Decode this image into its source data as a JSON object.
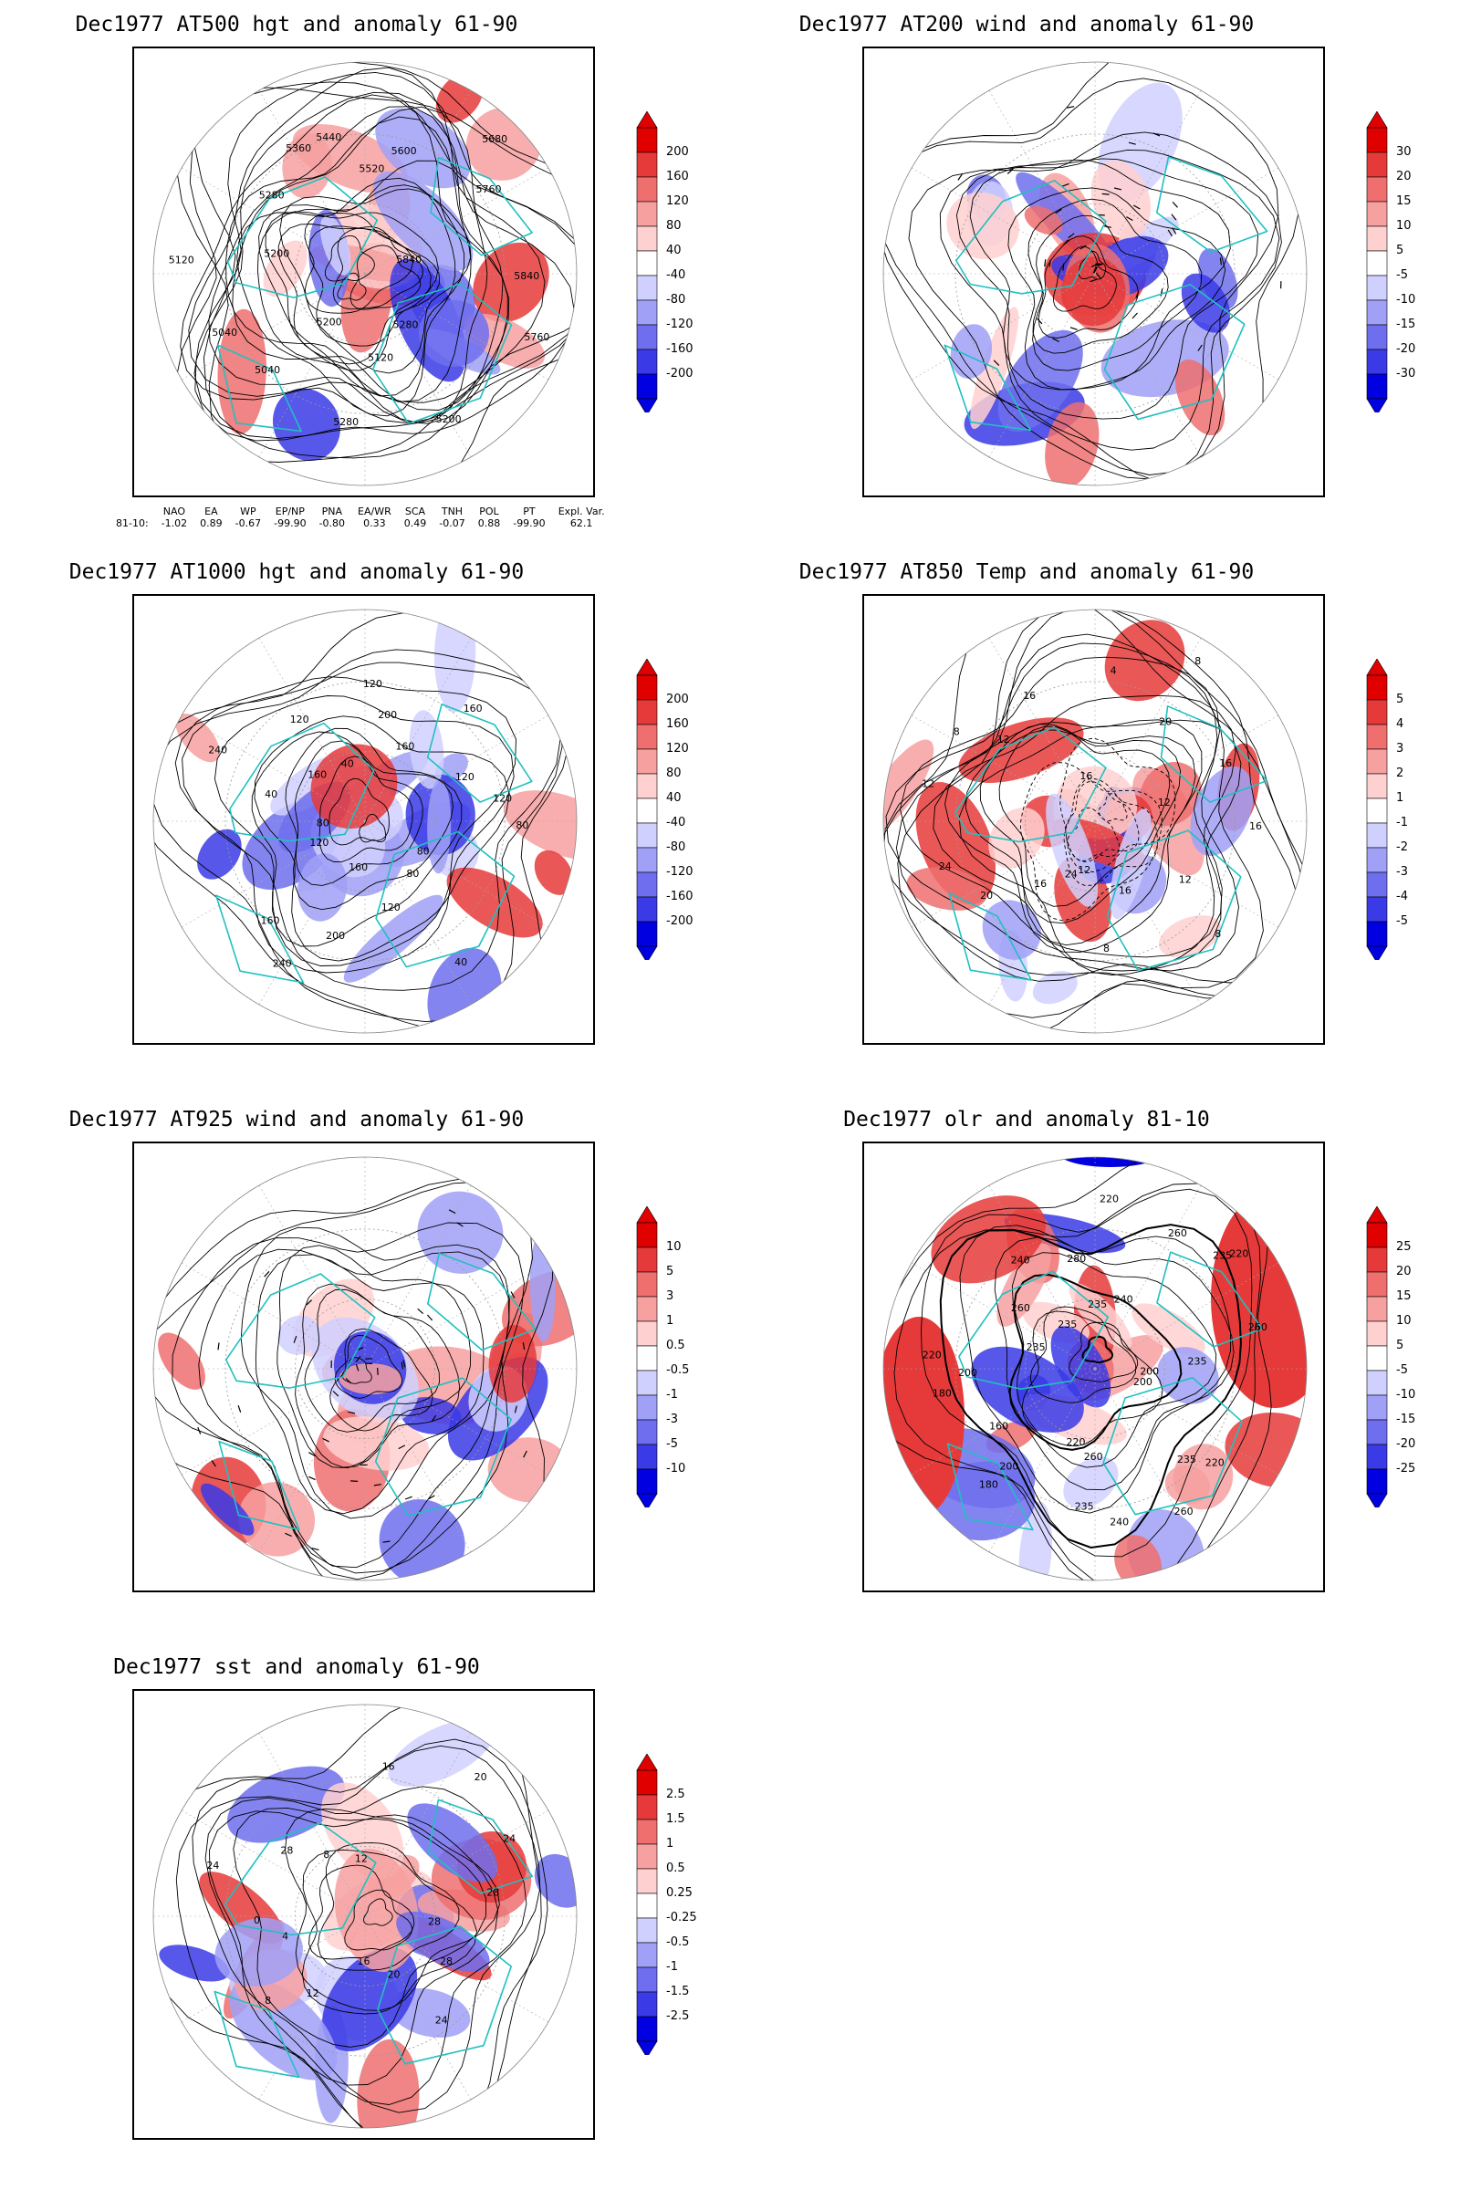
{
  "panels": [
    {
      "id": "p1",
      "title": "Dec1977 AT500 hgt and anomaly 61-90",
      "legend": [
        "200",
        "160",
        "120",
        "80",
        "40",
        "-40",
        "-80",
        "-120",
        "-160",
        "-200"
      ],
      "contour_labels": [
        "5840",
        "5760",
        "5280",
        "5200",
        "5120",
        "5280",
        "5200",
        "5040",
        "5040",
        "5120",
        "5200",
        "5280",
        "5360",
        "5440",
        "5520",
        "5600",
        "5680",
        "5760",
        "5840"
      ]
    },
    {
      "id": "p2",
      "title": "Dec1977 AT200 wind and anomaly 61-90",
      "legend": [
        "30",
        "20",
        "15",
        "10",
        "5",
        "-5",
        "-10",
        "-15",
        "-20",
        "-30"
      ],
      "contour_labels": []
    },
    {
      "id": "p3",
      "title": "Dec1977 AT1000 hgt and anomaly 61-90",
      "legend": [
        "200",
        "160",
        "120",
        "80",
        "40",
        "-40",
        "-80",
        "-120",
        "-160",
        "-200"
      ],
      "contour_labels": [
        "80",
        "80",
        "80",
        "40",
        "120",
        "160",
        "200",
        "240",
        "160",
        "120",
        "80",
        "40",
        "240",
        "160",
        "120",
        "40",
        "120",
        "200",
        "160",
        "160",
        "120",
        "120"
      ]
    },
    {
      "id": "p4",
      "title": "Dec1977 AT850 Temp and anomaly 61-90",
      "legend": [
        "5",
        "4",
        "3",
        "2",
        "1",
        "-1",
        "-2",
        "-3",
        "-4",
        "-5"
      ],
      "contour_labels": [
        "16",
        "12",
        "8",
        "16",
        "8",
        "12",
        "24",
        "16",
        "20",
        "24",
        "12",
        "8",
        "12",
        "16",
        "16",
        "4",
        "8",
        "20",
        "16",
        "12"
      ]
    },
    {
      "id": "p5",
      "title": "Dec1977 AT925 wind and anomaly 61-90",
      "legend": [
        "10",
        "5",
        "3",
        "1",
        "0.5",
        "-0.5",
        "-1",
        "-3",
        "-5",
        "-10"
      ],
      "contour_labels": []
    },
    {
      "id": "p6",
      "title": "Dec1977 olr and anomaly 81-10",
      "legend": [
        "25",
        "20",
        "15",
        "10",
        "5",
        "-5",
        "-10",
        "-15",
        "-20",
        "-25"
      ],
      "contour_labels": [
        "200",
        "200",
        "220",
        "235",
        "260",
        "240",
        "260",
        "235",
        "220",
        "200",
        "180",
        "160",
        "180",
        "200",
        "220",
        "235",
        "260",
        "240",
        "235",
        "280",
        "235",
        "220",
        "240",
        "260",
        "235",
        "220",
        "260",
        "235"
      ]
    },
    {
      "id": "p7",
      "title": "Dec1977 sst and anomaly 61-90",
      "legend": [
        "2.5",
        "1.5",
        "1",
        "0.5",
        "0.25",
        "-0.25",
        "-0.5",
        "-1",
        "-1.5",
        "-2.5"
      ],
      "contour_labels": [
        "28",
        "28",
        "24",
        "20",
        "16",
        "12",
        "8",
        "4",
        "0",
        "24",
        "28",
        "8",
        "12",
        "16",
        "20",
        "24",
        "28"
      ]
    }
  ],
  "indices": {
    "headers": [
      "NAO",
      "EA",
      "WP",
      "EP/NP",
      "PNA",
      "EA/WR",
      "SCA",
      "TNH",
      "POL",
      "PT",
      "Expl. Var."
    ],
    "row_label": "81-10:",
    "values": [
      "-1.02",
      "0.89",
      "-0.67",
      "-99.90",
      "-0.80",
      "0.33",
      "0.49",
      "-0.07",
      "0.88",
      "-99.90",
      "62.1"
    ]
  },
  "colors": {
    "coast": "#20c0c0",
    "contour": "#000000",
    "warm": [
      "#ffd0d0",
      "#f7a0a0",
      "#ef6e6e",
      "#e63a3a",
      "#e00000"
    ],
    "cool": [
      "#d0d0ff",
      "#a0a0f7",
      "#6e6eef",
      "#3a3ae6",
      "#0000e0"
    ]
  }
}
